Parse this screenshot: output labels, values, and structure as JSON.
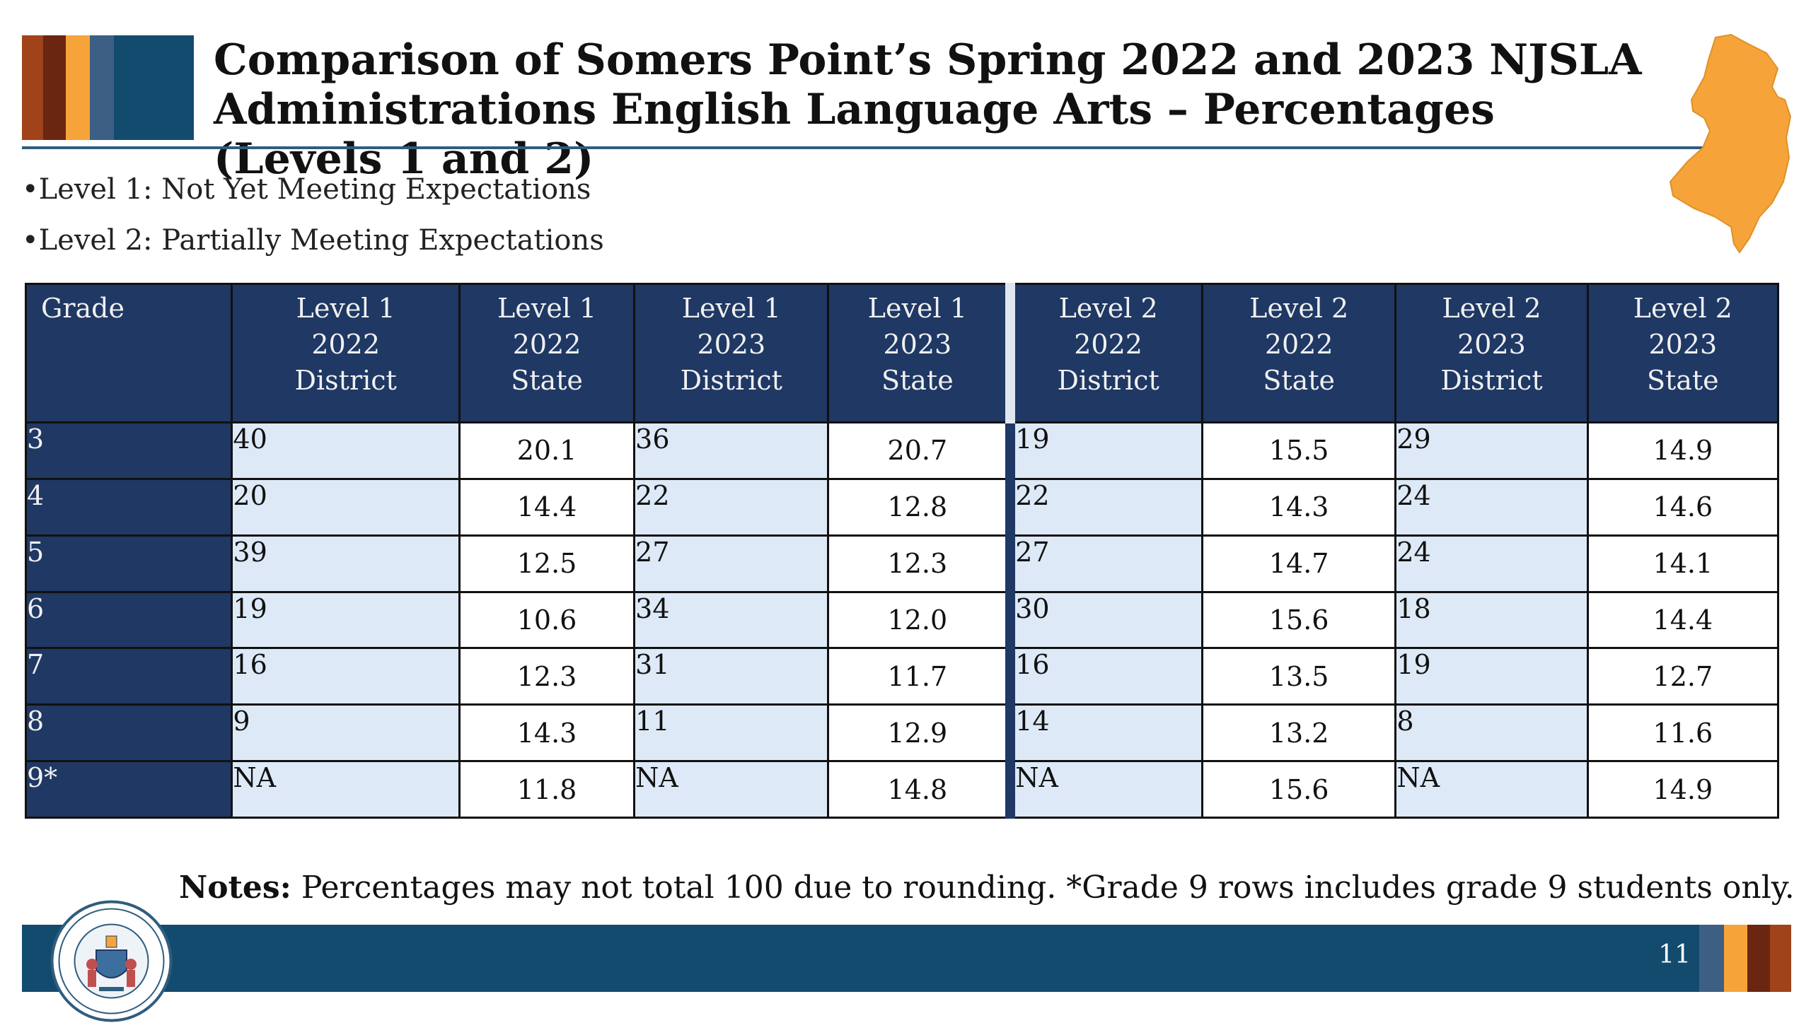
{
  "header": {
    "title_line1": "Comparison of Somers Point’s Spring 2022 and 2023 NJSLA",
    "title_line2": "Administrations English Language Arts – Percentages (Levels 1 and 2)",
    "stripe_colors": [
      "#a0421a",
      "#6b2612",
      "#f6a43a",
      "#3d5f83",
      "#134b6e"
    ]
  },
  "legend": {
    "level1": "•Level 1: Not Yet Meeting Expectations",
    "level2": "•Level 2: Partially Meeting Expectations"
  },
  "table": {
    "headers": [
      [
        "Grade"
      ],
      [
        "Level 1",
        "2022",
        "District"
      ],
      [
        "Level 1",
        "2022",
        "State"
      ],
      [
        "Level 1",
        "2023",
        "District"
      ],
      [
        "Level 1",
        "2023",
        "State"
      ],
      [
        "Level 2",
        "2022",
        "District"
      ],
      [
        "Level 2",
        "2022",
        "State"
      ],
      [
        "Level 2",
        "2023",
        "District"
      ],
      [
        "Level 2",
        "2023",
        "State"
      ]
    ],
    "rows": [
      [
        "3",
        "40",
        "20.1",
        "36",
        "20.7",
        "19",
        "15.5",
        "29",
        "14.9"
      ],
      [
        "4",
        "20",
        "14.4",
        "22",
        "12.8",
        "22",
        "14.3",
        "24",
        "14.6"
      ],
      [
        "5",
        "39",
        "12.5",
        "27",
        "12.3",
        "27",
        "14.7",
        "24",
        "14.1"
      ],
      [
        "6",
        "19",
        "10.6",
        "34",
        "12.0",
        "30",
        "15.6",
        "18",
        "14.4"
      ],
      [
        "7",
        "16",
        "12.3",
        "31",
        "11.7",
        "16",
        "13.5",
        "19",
        "12.7"
      ],
      [
        "8",
        "9",
        "14.3",
        "11",
        "12.9",
        "14",
        "13.2",
        "8",
        "11.6"
      ],
      [
        "9*",
        "NA",
        "11.8",
        "NA",
        "14.8",
        "NA",
        "15.6",
        "NA",
        "14.9"
      ]
    ]
  },
  "notes": {
    "label": "Notes:",
    "text": " Percentages may not total 100 due to rounding. *Grade 9 rows includes grade 9 students only."
  },
  "footer": {
    "page_number": "11",
    "seal_icon": "nj-department-of-education-seal",
    "stripe_colors": [
      "#3d5f83",
      "#f6a43a",
      "#6b2612",
      "#a0421a"
    ]
  },
  "colors": {
    "header_fill": "#1f3864",
    "district_fill": "#dde9f6",
    "accent_orange": "#f6a43a",
    "footer_bar": "#134b6e"
  }
}
